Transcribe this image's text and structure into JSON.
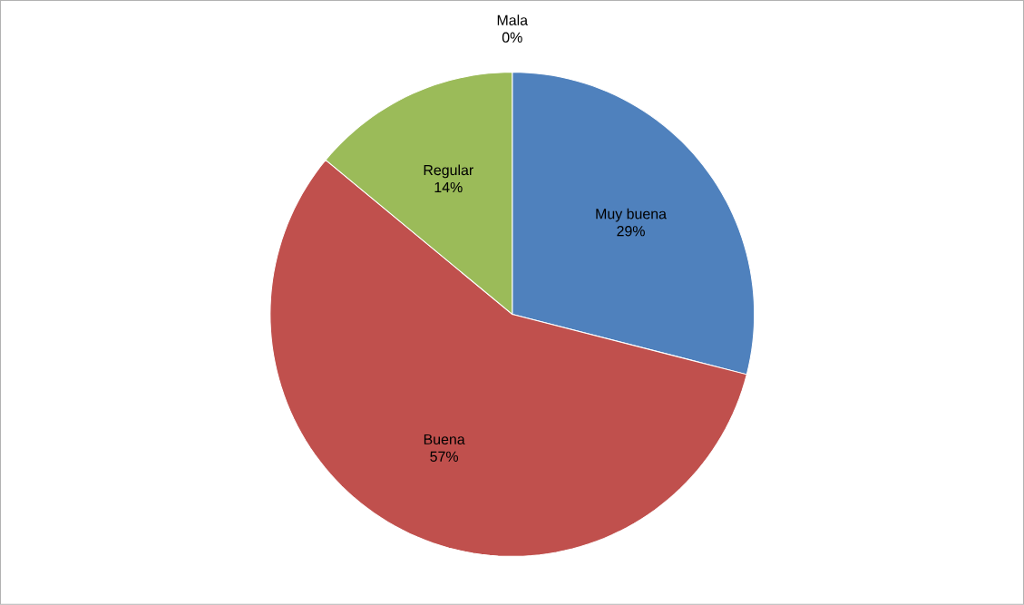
{
  "chart_data": {
    "type": "pie",
    "categories": [
      "Muy buena",
      "Buena",
      "Regular",
      "Mala"
    ],
    "values": [
      29,
      57,
      14,
      0
    ],
    "colors": [
      "#4f81bd",
      "#c0504d",
      "#9bbb59",
      "#8064a2"
    ],
    "value_labels": [
      "29%",
      "57%",
      "14%",
      "0%"
    ]
  }
}
